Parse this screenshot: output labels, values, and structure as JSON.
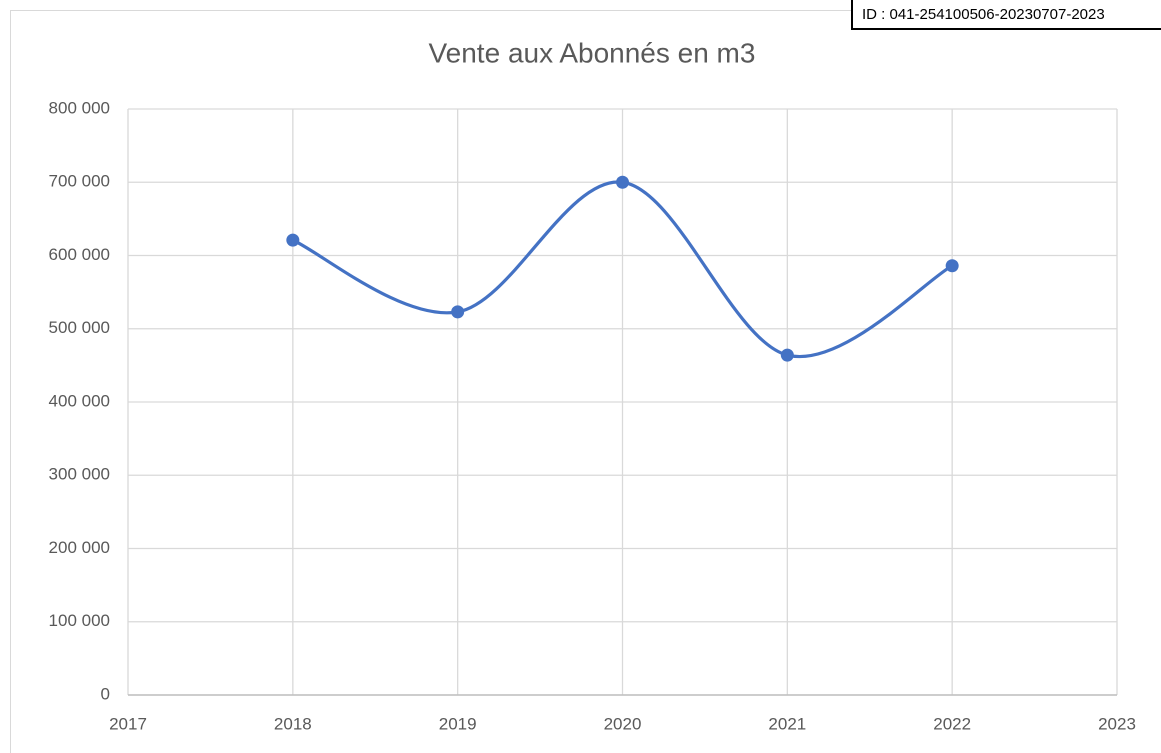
{
  "stamp": "ID : 041-254100506-20230707-2023",
  "chart_data": {
    "type": "line",
    "title": "Vente aux Abonnés en m3",
    "x": [
      2018,
      2019,
      2020,
      2021,
      2022
    ],
    "series": [
      {
        "name": "Vente aux Abonnés en m3",
        "color": "#4472c4",
        "values": [
          621000,
          523000,
          700000,
          464000,
          586000
        ]
      }
    ],
    "smooth": true,
    "xlim": [
      2017,
      2023
    ],
    "xticks": [
      2017,
      2018,
      2019,
      2020,
      2021,
      2022,
      2023
    ],
    "ylim": [
      0,
      800000
    ],
    "yticks": [
      0,
      {
        "value": 100000,
        "label": "100 000"
      },
      {
        "value": 200000,
        "label": "200 000"
      },
      {
        "value": 300000,
        "label": "300 000"
      },
      {
        "value": 400000,
        "label": "400 000"
      },
      {
        "value": 500000,
        "label": "500 000"
      },
      {
        "value": 600000,
        "label": "600 000"
      },
      {
        "value": 700000,
        "label": "700 000"
      },
      {
        "value": 800000,
        "label": "800 000"
      }
    ],
    "grid": true
  }
}
